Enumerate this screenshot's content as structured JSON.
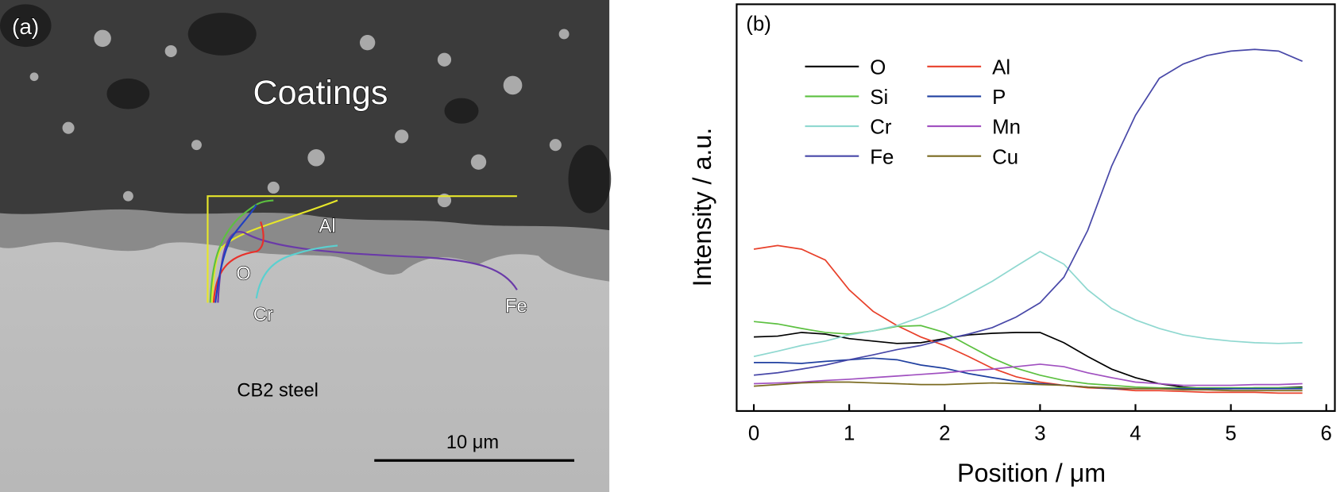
{
  "panel_a": {
    "label": "(a)",
    "region_label": "Coatings",
    "element_labels": [
      "Al",
      "O",
      "Cr",
      "Fe"
    ],
    "substrate_label": "CB2 steel",
    "scale_bar": "10 μm"
  },
  "chart_data": {
    "type": "line",
    "panel_label": "(b)",
    "xlabel": "Position / μm",
    "ylabel": "Intensity / a.u.",
    "xlim": [
      -0.18,
      6.09
    ],
    "xticks": [
      0,
      1,
      2,
      3,
      4,
      5,
      6
    ],
    "ylim": [
      0,
      100
    ],
    "legend": "upper left",
    "x": [
      0,
      0.25,
      0.5,
      0.75,
      1,
      1.25,
      1.5,
      1.75,
      2,
      2.25,
      2.5,
      2.75,
      3,
      3.25,
      3.5,
      3.75,
      4,
      4.25,
      4.5,
      4.75,
      5,
      5.25,
      5.5,
      5.75
    ],
    "series": [
      {
        "name": "O",
        "color": "#000000",
        "values": [
          18.2,
          18.4,
          19.3,
          18.9,
          17.8,
          17.2,
          16.6,
          16.8,
          17.8,
          18.7,
          19.1,
          19.3,
          19.3,
          16.8,
          13.4,
          10.3,
          8.2,
          6.7,
          5.9,
          5.5,
          5.5,
          5.7,
          5.7,
          5.9
        ]
      },
      {
        "name": "Al",
        "color": "#e8402a",
        "values": [
          39.8,
          40.7,
          39.8,
          37.1,
          29.8,
          24.5,
          21.0,
          18.2,
          16.1,
          13.4,
          10.5,
          8.4,
          7.1,
          6.3,
          5.7,
          5.5,
          5.0,
          5.0,
          4.8,
          4.6,
          4.6,
          4.6,
          4.4,
          4.4
        ]
      },
      {
        "name": "Si",
        "color": "#5cc040",
        "values": [
          22.0,
          21.4,
          20.3,
          19.3,
          18.9,
          19.7,
          20.8,
          21.0,
          19.3,
          16.1,
          13.0,
          10.5,
          8.8,
          7.5,
          6.7,
          6.3,
          5.9,
          5.7,
          5.7,
          5.7,
          5.7,
          5.7,
          5.7,
          5.7
        ]
      },
      {
        "name": "P",
        "color": "#2040a0",
        "values": [
          11.9,
          11.9,
          11.7,
          12.2,
          12.6,
          13.0,
          12.6,
          11.3,
          10.5,
          9.2,
          8.2,
          7.3,
          6.7,
          6.3,
          5.9,
          5.5,
          5.5,
          5.5,
          5.5,
          5.5,
          5.5,
          5.5,
          5.5,
          5.5
        ]
      },
      {
        "name": "Cr",
        "color": "#8fd8d0",
        "values": [
          13.4,
          14.7,
          16.1,
          17.2,
          18.7,
          19.7,
          21.0,
          23.1,
          25.6,
          28.7,
          31.9,
          35.6,
          39.2,
          36.1,
          29.8,
          25.2,
          22.4,
          20.3,
          18.7,
          17.8,
          17.2,
          16.8,
          16.6,
          16.8
        ]
      },
      {
        "name": "Mn",
        "color": "#a050c0",
        "values": [
          6.7,
          6.9,
          7.1,
          7.5,
          7.8,
          8.2,
          8.6,
          9.0,
          9.4,
          9.9,
          10.3,
          10.9,
          11.5,
          10.9,
          9.4,
          8.2,
          7.1,
          6.7,
          6.3,
          6.3,
          6.3,
          6.5,
          6.5,
          6.7
        ]
      },
      {
        "name": "Fe",
        "color": "#4848a8",
        "values": [
          8.8,
          9.4,
          10.3,
          11.3,
          12.6,
          13.8,
          15.1,
          16.1,
          17.6,
          18.9,
          20.5,
          23.1,
          26.6,
          32.9,
          44.4,
          60.2,
          72.7,
          81.8,
          85.3,
          87.4,
          88.5,
          88.9,
          88.5,
          86.0
        ]
      },
      {
        "name": "Cu",
        "color": "#7a6a20",
        "values": [
          6.1,
          6.5,
          6.9,
          7.1,
          7.1,
          6.9,
          6.7,
          6.5,
          6.5,
          6.7,
          6.9,
          6.7,
          6.5,
          6.3,
          5.9,
          5.7,
          5.5,
          5.5,
          5.2,
          5.2,
          5.0,
          5.0,
          5.0,
          5.0
        ]
      }
    ]
  }
}
